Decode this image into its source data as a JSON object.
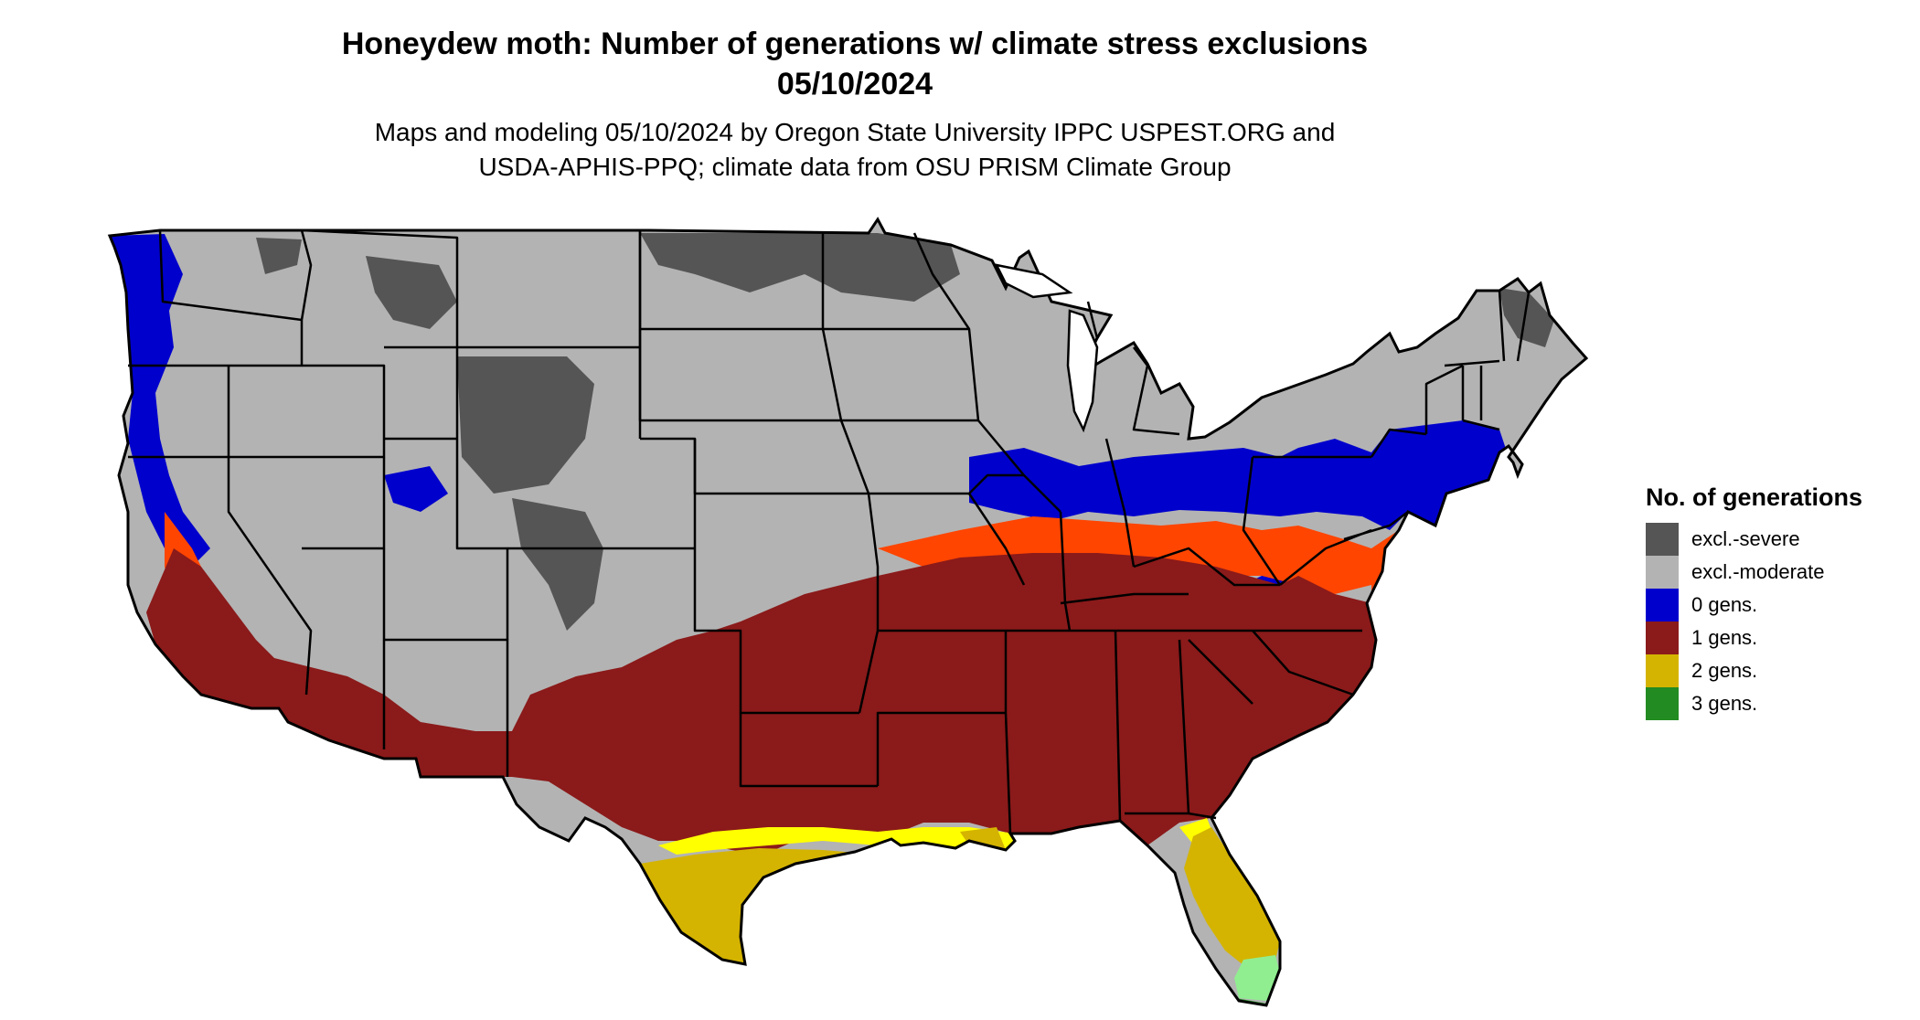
{
  "header": {
    "title_line1": "Honeydew moth: Number of generations w/ climate stress exclusions",
    "title_line2": "05/10/2024",
    "subtitle_line1": "Maps and modeling 05/10/2024 by Oregon State University IPPC USPEST.ORG and",
    "subtitle_line2": "USDA-APHIS-PPQ; climate data from OSU PRISM Climate Group"
  },
  "legend": {
    "title": "No. of generations",
    "items": [
      {
        "label": "excl.-severe",
        "color": "#555555"
      },
      {
        "label": "excl.-moderate",
        "color": "#b3b3b3"
      },
      {
        "label": "0 gens.",
        "color": "#0000cd"
      },
      {
        "label": "1 gens.",
        "color": "#8b1a1a"
      },
      {
        "label": "2 gens.",
        "color": "#d4b400"
      },
      {
        "label": "3 gens.",
        "color": "#228b22"
      }
    ]
  },
  "map_colors": {
    "severe": "#555555",
    "moderate": "#b3b3b3",
    "zero": "#0000cd",
    "one": "#8b1a1a",
    "one_light": "#ff4500",
    "two": "#d4b400",
    "two_light": "#ffff00",
    "three": "#228b22",
    "three_light": "#90ee90",
    "border": "#000000"
  }
}
